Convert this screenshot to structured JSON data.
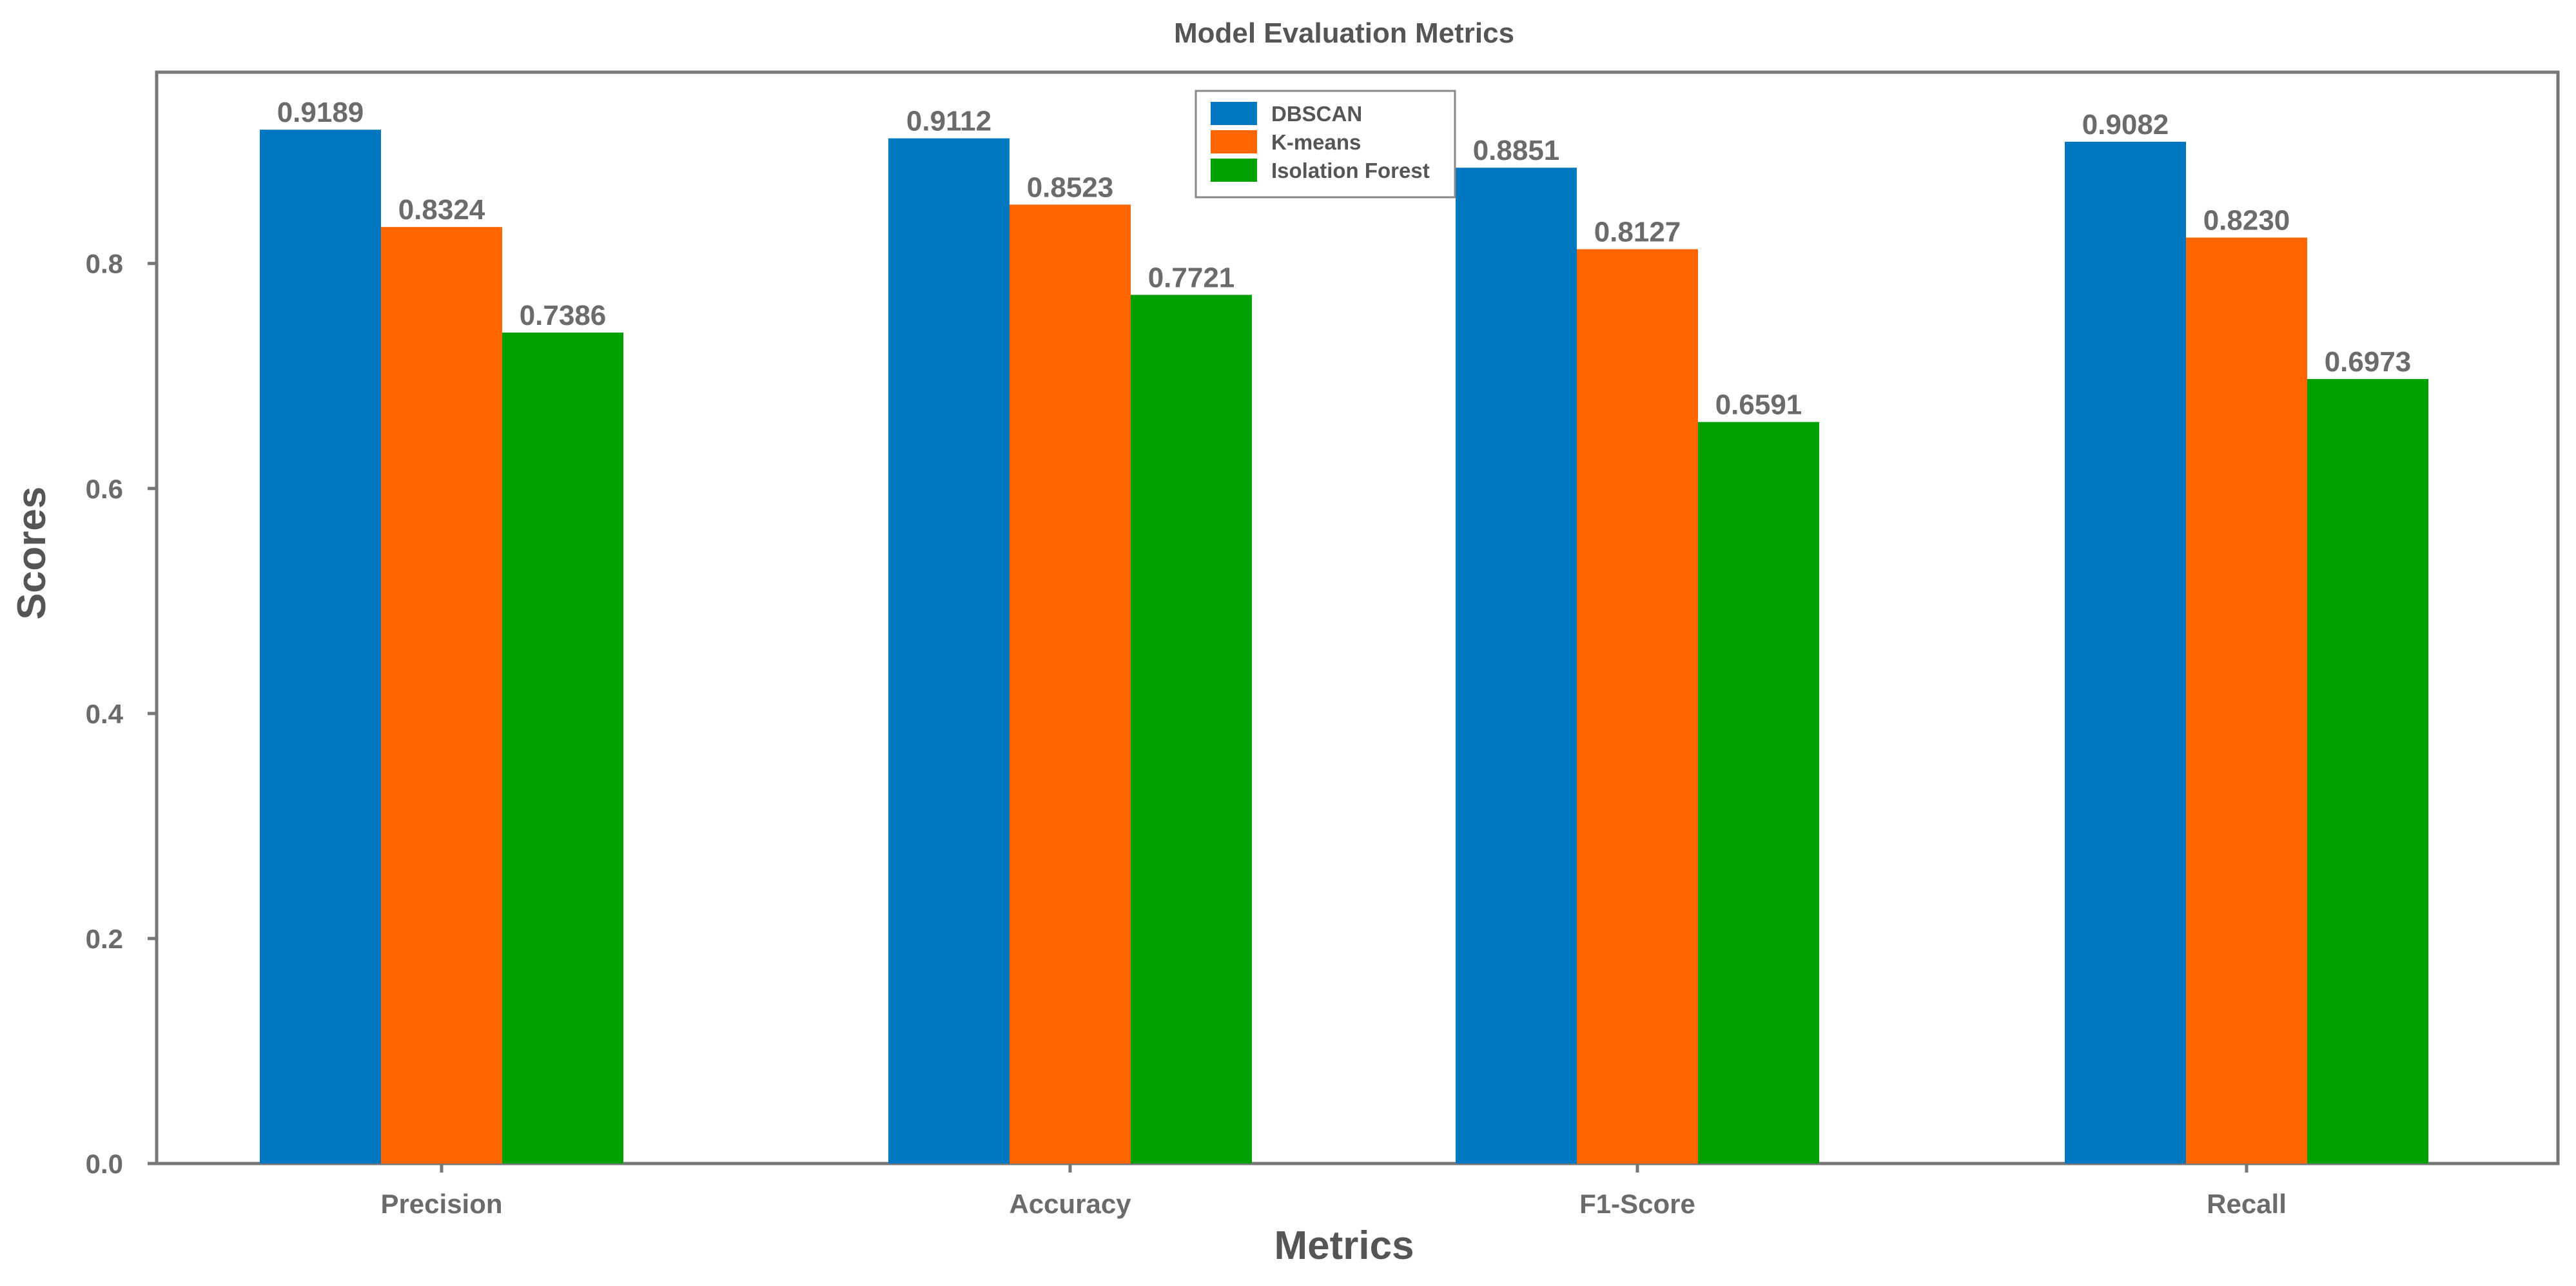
{
  "chart_data": {
    "type": "bar",
    "title": "Model Evaluation Metrics",
    "xlabel": "Metrics",
    "ylabel": "Scores",
    "categories": [
      "Precision",
      "Accuracy",
      "F1-Score",
      "Recall"
    ],
    "series": [
      {
        "name": "DBSCAN",
        "color": "#0077c0",
        "values": [
          0.9189,
          0.9112,
          0.8851,
          0.9082
        ]
      },
      {
        "name": "K-means",
        "color": "#ff6600",
        "values": [
          0.8324,
          0.8523,
          0.8127,
          0.823
        ]
      },
      {
        "name": "Isolation Forest",
        "color": "#00a000",
        "values": [
          0.7386,
          0.7721,
          0.6591,
          0.6973
        ]
      }
    ],
    "value_labels": [
      [
        "0.9189",
        "0.9112",
        "0.8851",
        "0.9082"
      ],
      [
        "0.8324",
        "0.8523",
        "0.8127",
        "0.8230"
      ],
      [
        "0.7386",
        "0.7721",
        "0.6591",
        "0.6973"
      ]
    ],
    "yticks": [
      "0.0",
      "0.2",
      "0.4",
      "0.6",
      "0.8"
    ],
    "ylim": [
      0,
      0.97
    ],
    "legend_position": "top-center",
    "grid": false
  }
}
